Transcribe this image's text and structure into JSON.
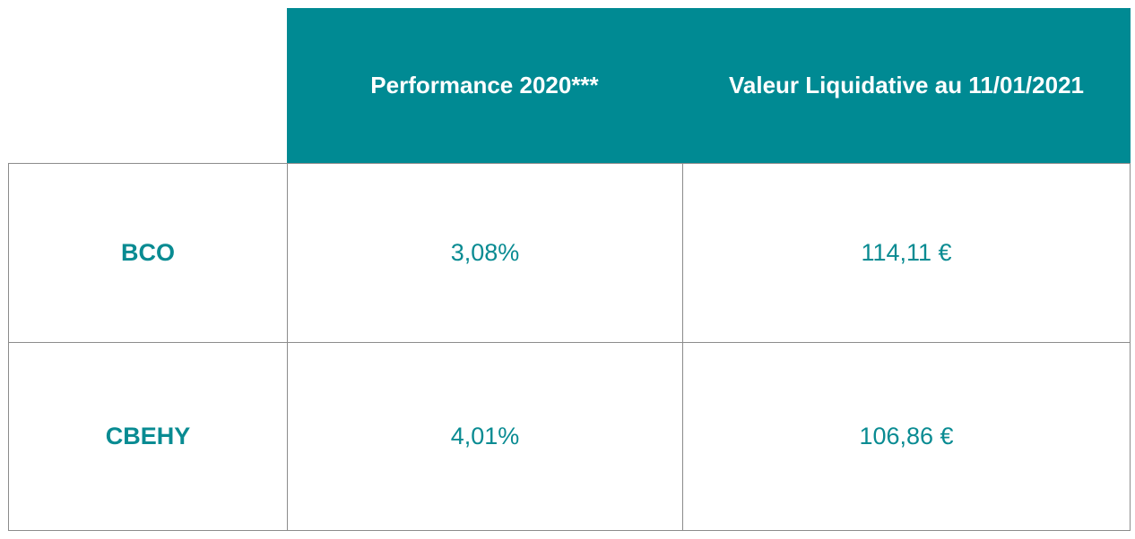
{
  "table": {
    "columns": [
      "",
      "Performance 2020***",
      "Valeur Liquidative au 11/01/2021"
    ],
    "rows": [
      {
        "name": "BCO",
        "performance": "3,08%",
        "valeur": "114,11 €"
      },
      {
        "name": "CBEHY",
        "performance": "4,01%",
        "valeur": "106,86 €"
      }
    ]
  },
  "colors": {
    "header_bg": "#008a93",
    "header_text": "#ffffff",
    "body_text": "#098b92",
    "border": "#8c8c8c"
  }
}
